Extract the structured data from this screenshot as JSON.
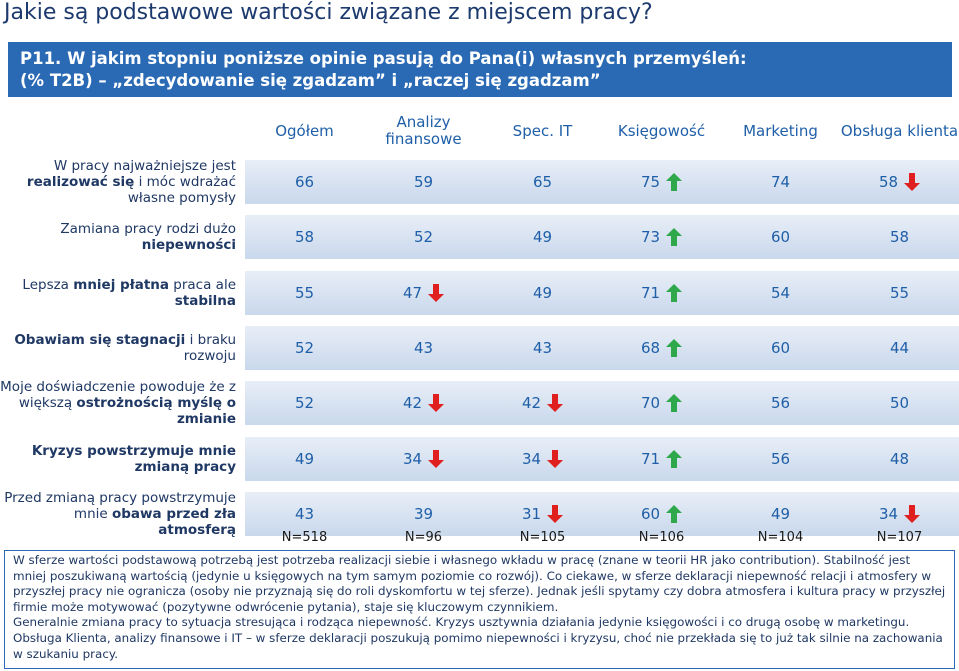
{
  "title": "Jakie są podstawowe wartości związane z miejscem pracy?",
  "question": [
    "P11. W jakim stopniu poniższe opinie pasują do Pana(i) własnych przemyśleń:",
    "(% T2B) – „zdecydowanie się zgadzam” i „raczej się zgadzam”"
  ],
  "columns": [
    "Ogółem",
    "Analizy finansowe",
    "Spec. IT",
    "Księgowość",
    "Marketing",
    "Obsługa klienta"
  ],
  "rows": [
    {
      "label": [
        {
          "text": "W pracy najważniejsze jest ",
          "bold": false
        },
        {
          "text": "realizować się",
          "bold": true
        },
        {
          "text": " i móc wdrażać własne pomysły",
          "bold": false
        }
      ],
      "cells": [
        {
          "value": 66,
          "trend": null
        },
        {
          "value": 59,
          "trend": null
        },
        {
          "value": 65,
          "trend": null
        },
        {
          "value": 75,
          "trend": "up"
        },
        {
          "value": 74,
          "trend": null
        },
        {
          "value": 58,
          "trend": "down"
        }
      ]
    },
    {
      "label": [
        {
          "text": "Zamiana pracy rodzi dużo ",
          "bold": false
        },
        {
          "text": "niepewności",
          "bold": true
        }
      ],
      "cells": [
        {
          "value": 58,
          "trend": null
        },
        {
          "value": 52,
          "trend": null
        },
        {
          "value": 49,
          "trend": null
        },
        {
          "value": 73,
          "trend": "up"
        },
        {
          "value": 60,
          "trend": null
        },
        {
          "value": 58,
          "trend": null
        }
      ]
    },
    {
      "label": [
        {
          "text": "Lepsza ",
          "bold": false
        },
        {
          "text": "mniej płatna",
          "bold": true
        },
        {
          "text": " praca ale ",
          "bold": false
        },
        {
          "text": "stabilna",
          "bold": true
        }
      ],
      "cells": [
        {
          "value": 55,
          "trend": null
        },
        {
          "value": 47,
          "trend": "down"
        },
        {
          "value": 49,
          "trend": null
        },
        {
          "value": 71,
          "trend": "up"
        },
        {
          "value": 54,
          "trend": null
        },
        {
          "value": 55,
          "trend": null
        }
      ]
    },
    {
      "label": [
        {
          "text": "Obawiam się stagnacji",
          "bold": true
        },
        {
          "text": " i braku rozwoju",
          "bold": false
        }
      ],
      "cells": [
        {
          "value": 52,
          "trend": null
        },
        {
          "value": 43,
          "trend": null
        },
        {
          "value": 43,
          "trend": null
        },
        {
          "value": 68,
          "trend": "up"
        },
        {
          "value": 60,
          "trend": null
        },
        {
          "value": 44,
          "trend": null
        }
      ]
    },
    {
      "label": [
        {
          "text": "Moje doświadczenie powoduje że z większą ",
          "bold": false
        },
        {
          "text": "ostrożnością myślę o zmianie",
          "bold": true
        }
      ],
      "cells": [
        {
          "value": 52,
          "trend": null
        },
        {
          "value": 42,
          "trend": "down"
        },
        {
          "value": 42,
          "trend": "down"
        },
        {
          "value": 70,
          "trend": "up"
        },
        {
          "value": 56,
          "trend": null
        },
        {
          "value": 50,
          "trend": null
        }
      ]
    },
    {
      "label": [
        {
          "text": "Kryzys powstrzymuje mnie zmianą pracy",
          "bold": true
        }
      ],
      "cells": [
        {
          "value": 49,
          "trend": null
        },
        {
          "value": 34,
          "trend": "down"
        },
        {
          "value": 34,
          "trend": "down"
        },
        {
          "value": 71,
          "trend": "up"
        },
        {
          "value": 56,
          "trend": null
        },
        {
          "value": 48,
          "trend": null
        }
      ]
    },
    {
      "label": [
        {
          "text": "Przed zmianą pracy powstrzymuje mnie ",
          "bold": false
        },
        {
          "text": "obawa przed zła atmosferą",
          "bold": true
        }
      ],
      "cells": [
        {
          "value": 43,
          "trend": null
        },
        {
          "value": 39,
          "trend": null
        },
        {
          "value": 31,
          "trend": "down"
        },
        {
          "value": 60,
          "trend": "up"
        },
        {
          "value": 49,
          "trend": null
        },
        {
          "value": 34,
          "trend": "down"
        }
      ]
    }
  ],
  "sample_sizes": [
    "N=518",
    "N=96",
    "N=105",
    "N=106",
    "N=104",
    "N=107"
  ],
  "note": [
    "W sferze wartości podstawową potrzebą jest potrzeba realizacji siebie i własnego wkładu w pracę (znane w teorii HR jako contribution). Stabilność jest mniej poszukiwaną wartością (jedynie u księgowych na tym samym poziomie co rozwój). Co ciekawe, w sferze deklaracji niepewność relacji i atmosfery w przyszłej pracy nie ogranicza (osoby nie przyznają się do roli dyskomfortu w tej sferze). Jednak jeśli spytamy czy dobra atmosfera i kultura pracy w przyszłej firmie może motywować (pozytywne odwrócenie pytania), staje się kluczowym czynnikiem.",
    "Generalnie zmiana pracy to sytuacja stresująca i rodząca niepewność. Kryzys usztywnia działania jedynie księgowości i co drugą osobę w marketingu.",
    "Obsługa Klienta, analizy finansowe i IT – w sferze deklaracji poszukują pomimo niepewności i kryzysu, choć nie przekłada się to już tak silnie na zachowania w szukaniu pracy."
  ]
}
